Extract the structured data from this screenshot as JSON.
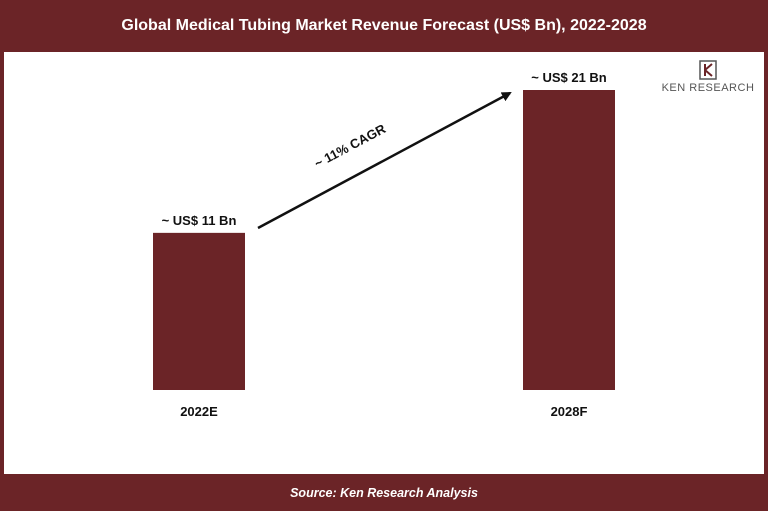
{
  "header": {
    "title": "Global Medical Tubing Market Revenue Forecast (US$ Bn), 2022-2028"
  },
  "footer": {
    "source": "Source: Ken Research Analysis"
  },
  "logo": {
    "text": "KEN RESEARCH",
    "icon": "ken-research-logo-icon"
  },
  "colors": {
    "bar": "#6b2427",
    "frame": "#6b2427",
    "text": "#111111",
    "arrow": "#111111"
  },
  "chart_data": {
    "type": "bar",
    "title": "Global Medical Tubing Market Revenue Forecast (US$ Bn), 2022-2028",
    "categories": [
      "2022E",
      "2028F"
    ],
    "values": [
      11,
      21
    ],
    "data_labels": [
      "~ US$ 11 Bn",
      "~ US$ 21 Bn"
    ],
    "annotation": "~ 11% CAGR",
    "xlabel": "",
    "ylabel": "",
    "ylim": [
      0,
      21
    ],
    "grid": false,
    "legend": "none"
  }
}
